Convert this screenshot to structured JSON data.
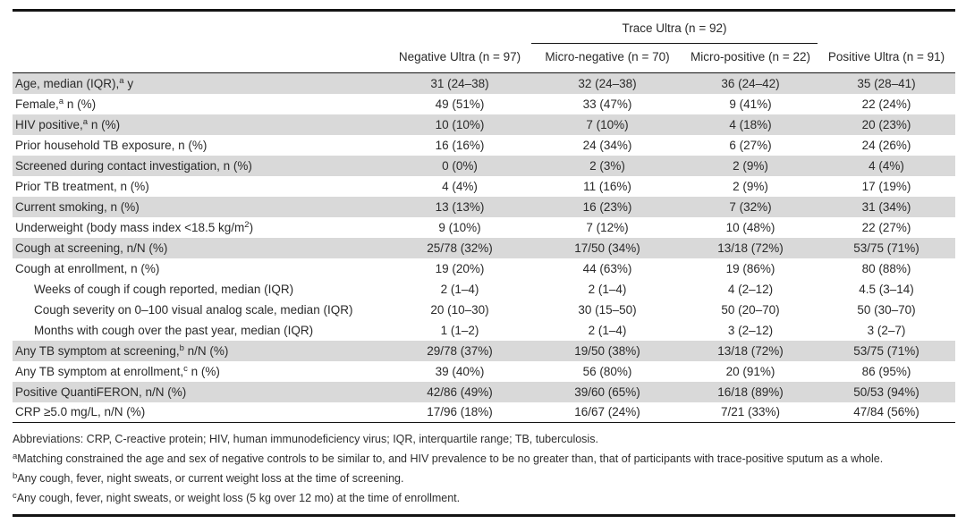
{
  "colors": {
    "row_shading": "#d9d9d9",
    "rule": "#141414",
    "text": "#2a2a2a",
    "background": "#ffffff"
  },
  "table": {
    "spanner": {
      "label": "Trace Ultra (n = 92)"
    },
    "columns": [
      "Negative Ultra (n = 97)",
      "Micro-negative (n = 70)",
      "Micro-positive (n = 22)",
      "Positive Ultra (n = 91)"
    ],
    "rows": [
      {
        "label": [
          {
            "t": "Age, median (IQR),"
          },
          {
            "s": "a"
          },
          {
            "t": " y"
          }
        ],
        "indent": false,
        "shaded": true,
        "values": [
          "31 (24–38)",
          "32 (24–38)",
          "36 (24–42)",
          "35 (28–41)"
        ]
      },
      {
        "label": [
          {
            "t": "Female,"
          },
          {
            "s": "a"
          },
          {
            "t": " n (%)"
          }
        ],
        "indent": false,
        "shaded": false,
        "values": [
          "49 (51%)",
          "33 (47%)",
          "9 (41%)",
          "22 (24%)"
        ]
      },
      {
        "label": [
          {
            "t": "HIV positive,"
          },
          {
            "s": "a"
          },
          {
            "t": " n (%)"
          }
        ],
        "indent": false,
        "shaded": true,
        "values": [
          "10 (10%)",
          "7 (10%)",
          "4 (18%)",
          "20 (23%)"
        ]
      },
      {
        "label": [
          {
            "t": "Prior household TB exposure, n (%)"
          }
        ],
        "indent": false,
        "shaded": false,
        "values": [
          "16 (16%)",
          "24 (34%)",
          "6 (27%)",
          "24 (26%)"
        ]
      },
      {
        "label": [
          {
            "t": "Screened during contact investigation, n (%)"
          }
        ],
        "indent": false,
        "shaded": true,
        "values": [
          "0 (0%)",
          "2 (3%)",
          "2 (9%)",
          "4 (4%)"
        ]
      },
      {
        "label": [
          {
            "t": "Prior TB treatment, n (%)"
          }
        ],
        "indent": false,
        "shaded": false,
        "values": [
          "4 (4%)",
          "11 (16%)",
          "2 (9%)",
          "17 (19%)"
        ]
      },
      {
        "label": [
          {
            "t": "Current smoking, n (%)"
          }
        ],
        "indent": false,
        "shaded": true,
        "values": [
          "13 (13%)",
          "16 (23%)",
          "7 (32%)",
          "31 (34%)"
        ]
      },
      {
        "label": [
          {
            "t": "Underweight (body mass index <18.5 kg/m"
          },
          {
            "s": "2"
          },
          {
            "t": ")"
          }
        ],
        "indent": false,
        "shaded": false,
        "values": [
          "9 (10%)",
          "7 (12%)",
          "10 (48%)",
          "22 (27%)"
        ]
      },
      {
        "label": [
          {
            "t": "Cough at screening, n/N (%)"
          }
        ],
        "indent": false,
        "shaded": true,
        "values": [
          "25/78 (32%)",
          "17/50 (34%)",
          "13/18 (72%)",
          "53/75 (71%)"
        ]
      },
      {
        "label": [
          {
            "t": "Cough at enrollment, n (%)"
          }
        ],
        "indent": false,
        "shaded": false,
        "values": [
          "19 (20%)",
          "44 (63%)",
          "19 (86%)",
          "80 (88%)"
        ]
      },
      {
        "label": [
          {
            "t": "Weeks of cough if cough reported, median (IQR)"
          }
        ],
        "indent": true,
        "shaded": false,
        "values": [
          "2 (1–4)",
          "2 (1–4)",
          "4 (2–12)",
          "4.5 (3–14)"
        ]
      },
      {
        "label": [
          {
            "t": "Cough severity on 0–100 visual analog scale, median (IQR)"
          }
        ],
        "indent": true,
        "shaded": false,
        "values": [
          "20 (10–30)",
          "30 (15–50)",
          "50 (20–70)",
          "50 (30–70)"
        ]
      },
      {
        "label": [
          {
            "t": "Months with cough over the past year, median (IQR)"
          }
        ],
        "indent": true,
        "shaded": false,
        "values": [
          "1 (1–2)",
          "2 (1–4)",
          "3 (2–12)",
          "3 (2–7)"
        ]
      },
      {
        "label": [
          {
            "t": "Any TB symptom at screening,"
          },
          {
            "s": "b"
          },
          {
            "t": " n/N (%)"
          }
        ],
        "indent": false,
        "shaded": true,
        "values": [
          "29/78 (37%)",
          "19/50 (38%)",
          "13/18 (72%)",
          "53/75 (71%)"
        ]
      },
      {
        "label": [
          {
            "t": "Any TB symptom at enrollment,"
          },
          {
            "s": "c"
          },
          {
            "t": " n (%)"
          }
        ],
        "indent": false,
        "shaded": false,
        "values": [
          "39 (40%)",
          "56 (80%)",
          "20 (91%)",
          "86 (95%)"
        ]
      },
      {
        "label": [
          {
            "t": "Positive QuantiFERON, n/N (%)"
          }
        ],
        "indent": false,
        "shaded": true,
        "values": [
          "42/86 (49%)",
          "39/60 (65%)",
          "16/18 (89%)",
          "50/53 (94%)"
        ]
      },
      {
        "label": [
          {
            "t": "CRP ≥5.0 mg/L, n/N (%)"
          }
        ],
        "indent": false,
        "shaded": false,
        "values": [
          "17/96 (18%)",
          "16/67 (24%)",
          "7/21 (33%)",
          "47/84 (56%)"
        ]
      }
    ],
    "footnotes": [
      {
        "parts": [
          {
            "t": "Abbreviations: CRP, C-reactive protein; HIV, human immunodeficiency virus; IQR, interquartile range; TB, tuberculosis."
          }
        ]
      },
      {
        "parts": [
          {
            "s": "a"
          },
          {
            "t": "Matching constrained the age and sex of negative controls to be similar to, and HIV prevalence to be no greater than, that of participants with trace-positive sputum as a whole."
          }
        ]
      },
      {
        "parts": [
          {
            "s": "b"
          },
          {
            "t": "Any cough, fever, night sweats, or current weight loss at the time of screening."
          }
        ]
      },
      {
        "parts": [
          {
            "s": "c"
          },
          {
            "t": "Any cough, fever, night sweats, or weight loss (5 kg over 12 mo) at the time of enrollment."
          }
        ]
      }
    ]
  }
}
